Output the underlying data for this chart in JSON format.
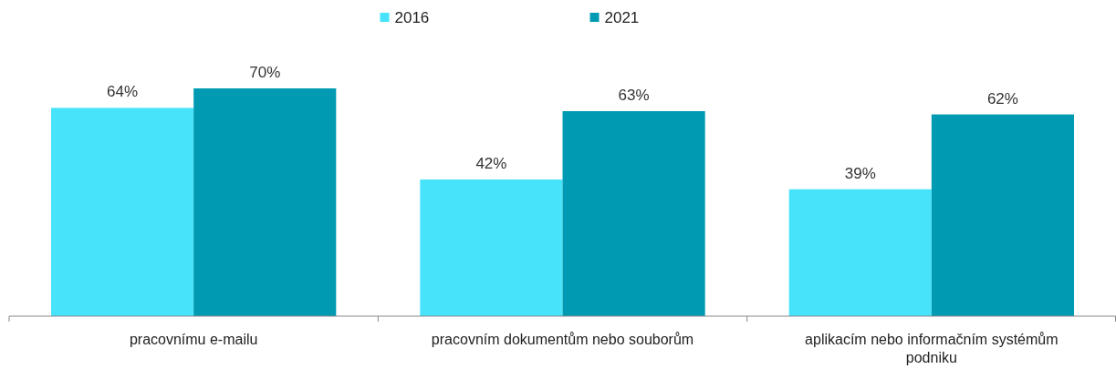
{
  "chart_data": {
    "type": "bar",
    "categories": [
      "pracovnímu e-mailu",
      "pracovním dokumentům nebo souborům",
      "aplikacím nebo informačním systémům podniku"
    ],
    "series": [
      {
        "name": "2016",
        "color": "#47e3fb",
        "values": [
          64,
          42,
          39
        ],
        "value_labels": [
          "64%",
          "42%",
          "39%"
        ]
      },
      {
        "name": "2021",
        "color": "#009bb3",
        "values": [
          70,
          63,
          62
        ],
        "value_labels": [
          "70%",
          "63%",
          "62%"
        ]
      }
    ],
    "legend": "top"
  }
}
